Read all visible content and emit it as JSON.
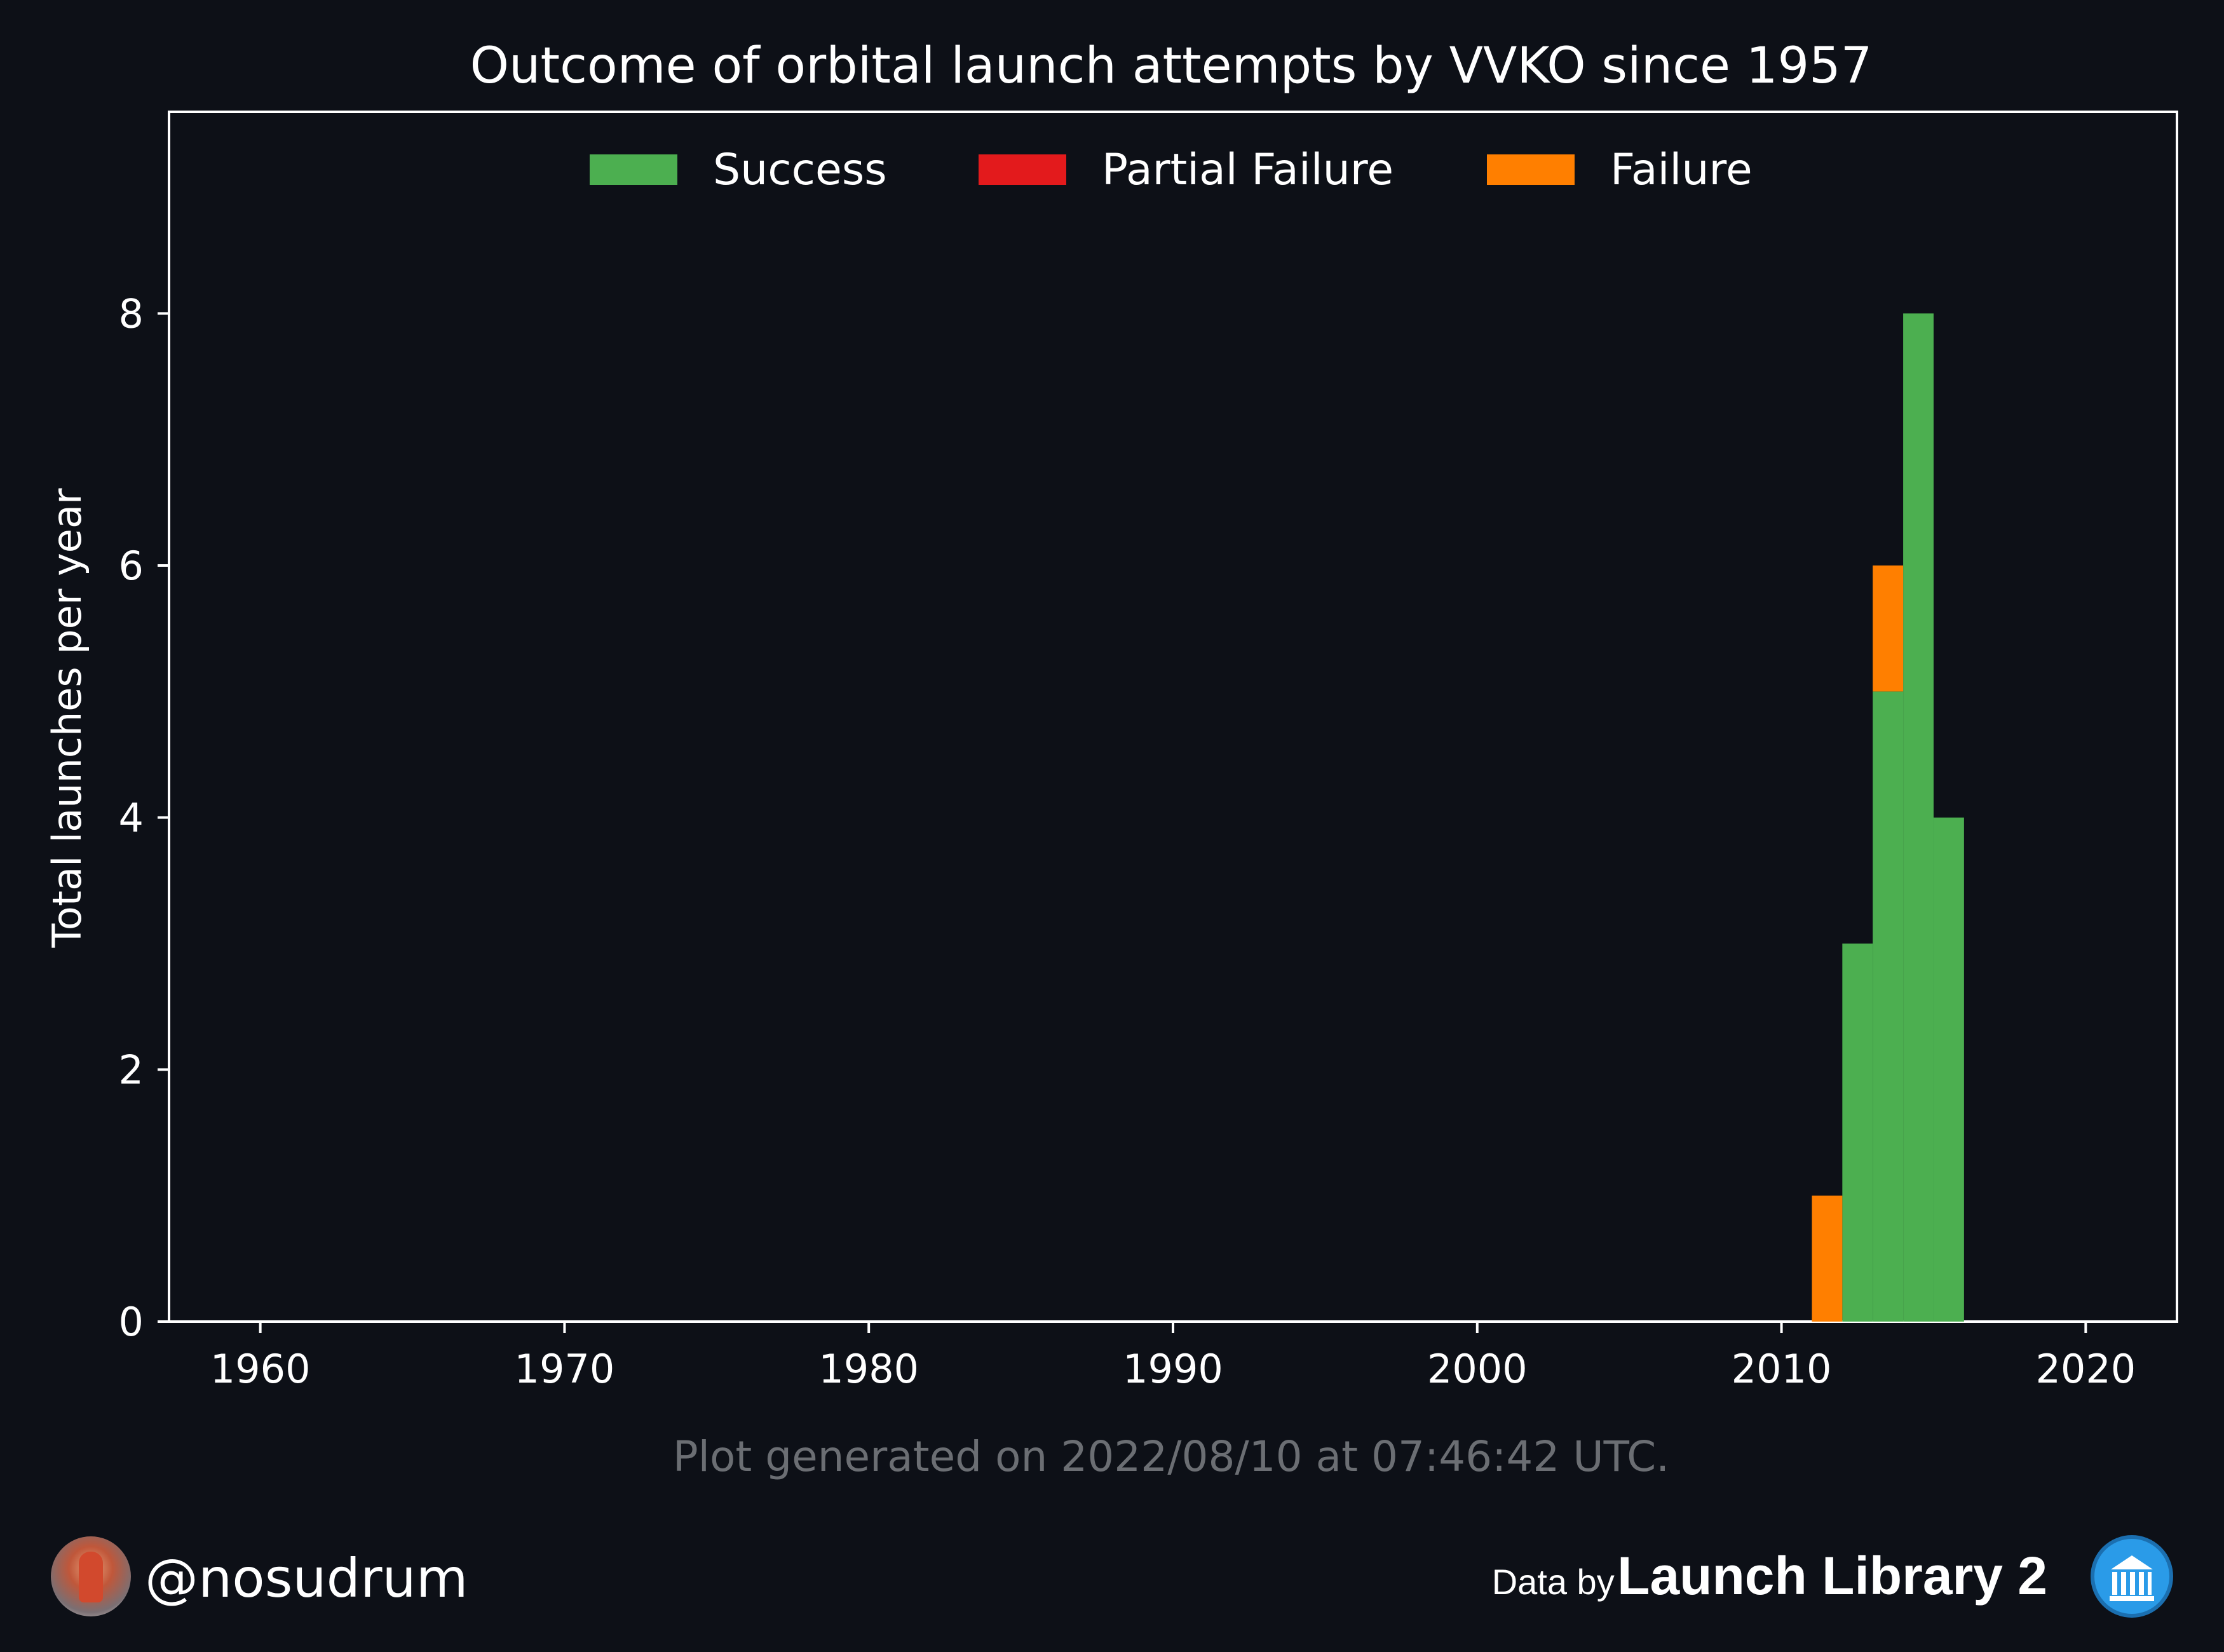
{
  "chart_data": {
    "type": "bar",
    "stacked": true,
    "title": "Outcome of orbital launch attempts by VVKO since 1957",
    "xlabel": "",
    "ylabel": "Total launches per year",
    "xlim": [
      1957,
      2023
    ],
    "ylim": [
      0,
      9.6
    ],
    "x_ticks": [
      1960,
      1970,
      1980,
      1990,
      2000,
      2010,
      2020
    ],
    "y_ticks": [
      0,
      2,
      4,
      6,
      8
    ],
    "grid": false,
    "legend": "top-center",
    "x": [
      2011,
      2012,
      2013,
      2014,
      2015
    ],
    "series": [
      {
        "name": "Success",
        "color": "#4caf50",
        "values": [
          0,
          3,
          5,
          8,
          4
        ]
      },
      {
        "name": "Partial Failure",
        "color": "#e31a1c",
        "values": [
          0,
          0,
          0,
          0,
          0
        ]
      },
      {
        "name": "Failure",
        "color": "#ff7f00",
        "values": [
          1,
          0,
          1,
          0,
          0
        ]
      }
    ]
  },
  "footer": {
    "generated": "Plot generated on 2022/08/10 at 07:46:42 UTC.",
    "handle": "@nosudrum",
    "data_by": "Data by",
    "source": "Launch Library 2"
  },
  "colors": {
    "background": "#0d1017",
    "axes": "#ffffff",
    "muted_text": "#6b6e73"
  },
  "icons": {
    "avatar": "astronaut-avatar-icon",
    "source_logo": "launch-library-logo-icon"
  }
}
